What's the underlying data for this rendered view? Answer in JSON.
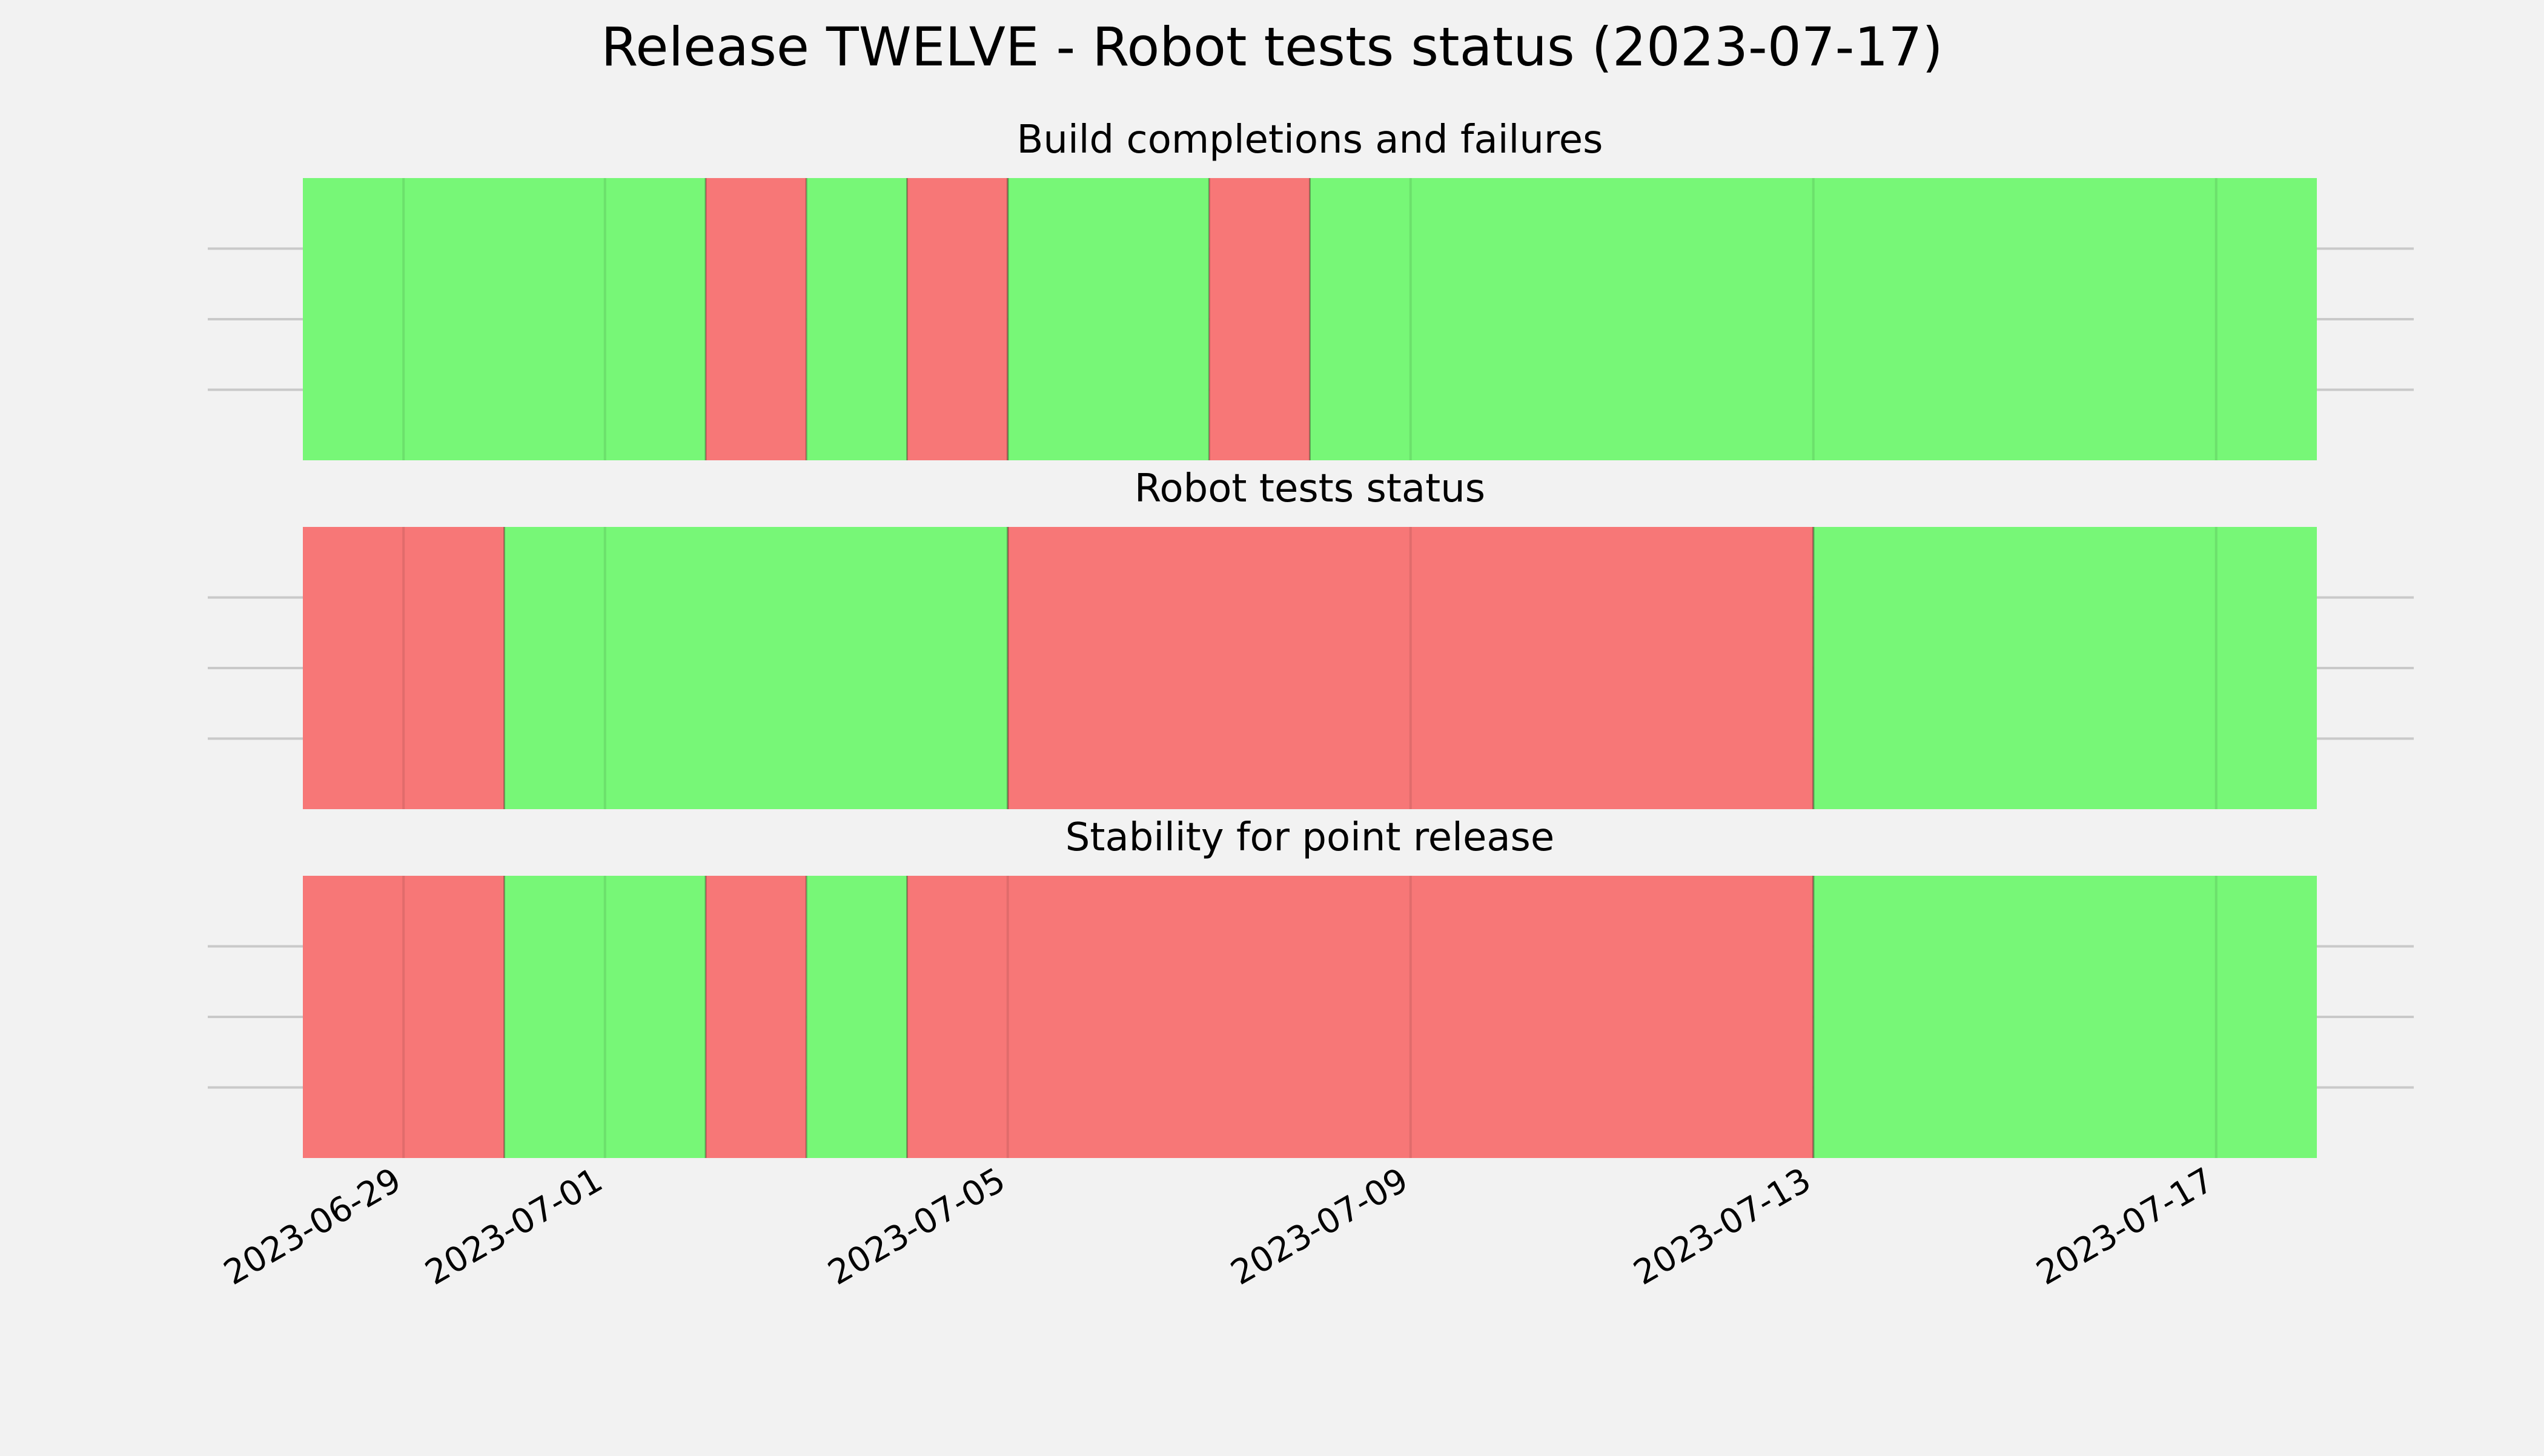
{
  "chart_data": {
    "type": "timeline-status",
    "title": "Release TWELVE - Robot tests status (2023-07-17)",
    "x_start": "2023-06-28",
    "x_end": "2023-07-18",
    "x_ticks": [
      "2023-06-29",
      "2023-07-01",
      "2023-07-05",
      "2023-07-09",
      "2023-07-13",
      "2023-07-17"
    ],
    "grid": true,
    "colors": {
      "pass": "#77f777",
      "fail": "#f77777",
      "background": "#f2f2f2",
      "grid": "#c9c9c9"
    },
    "panels": [
      {
        "title": "Build completions and failures",
        "segments": [
          {
            "start": "2023-06-28",
            "end": "2023-07-02",
            "status": "pass"
          },
          {
            "start": "2023-07-02",
            "end": "2023-07-03",
            "status": "fail"
          },
          {
            "start": "2023-07-03",
            "end": "2023-07-04",
            "status": "pass"
          },
          {
            "start": "2023-07-04",
            "end": "2023-07-05",
            "status": "fail"
          },
          {
            "start": "2023-07-05",
            "end": "2023-07-07",
            "status": "pass"
          },
          {
            "start": "2023-07-07",
            "end": "2023-07-08",
            "status": "fail"
          },
          {
            "start": "2023-07-08",
            "end": "2023-07-18",
            "status": "pass"
          }
        ]
      },
      {
        "title": "Robot tests status",
        "segments": [
          {
            "start": "2023-06-28",
            "end": "2023-06-30",
            "status": "fail"
          },
          {
            "start": "2023-06-30",
            "end": "2023-07-05",
            "status": "pass"
          },
          {
            "start": "2023-07-05",
            "end": "2023-07-13",
            "status": "fail"
          },
          {
            "start": "2023-07-13",
            "end": "2023-07-18",
            "status": "pass"
          }
        ]
      },
      {
        "title": "Stability for point release",
        "segments": [
          {
            "start": "2023-06-28",
            "end": "2023-06-30",
            "status": "fail"
          },
          {
            "start": "2023-06-30",
            "end": "2023-07-02",
            "status": "pass"
          },
          {
            "start": "2023-07-02",
            "end": "2023-07-03",
            "status": "fail"
          },
          {
            "start": "2023-07-03",
            "end": "2023-07-04",
            "status": "pass"
          },
          {
            "start": "2023-07-04",
            "end": "2023-07-13",
            "status": "fail"
          },
          {
            "start": "2023-07-13",
            "end": "2023-07-18",
            "status": "pass"
          }
        ]
      }
    ]
  }
}
